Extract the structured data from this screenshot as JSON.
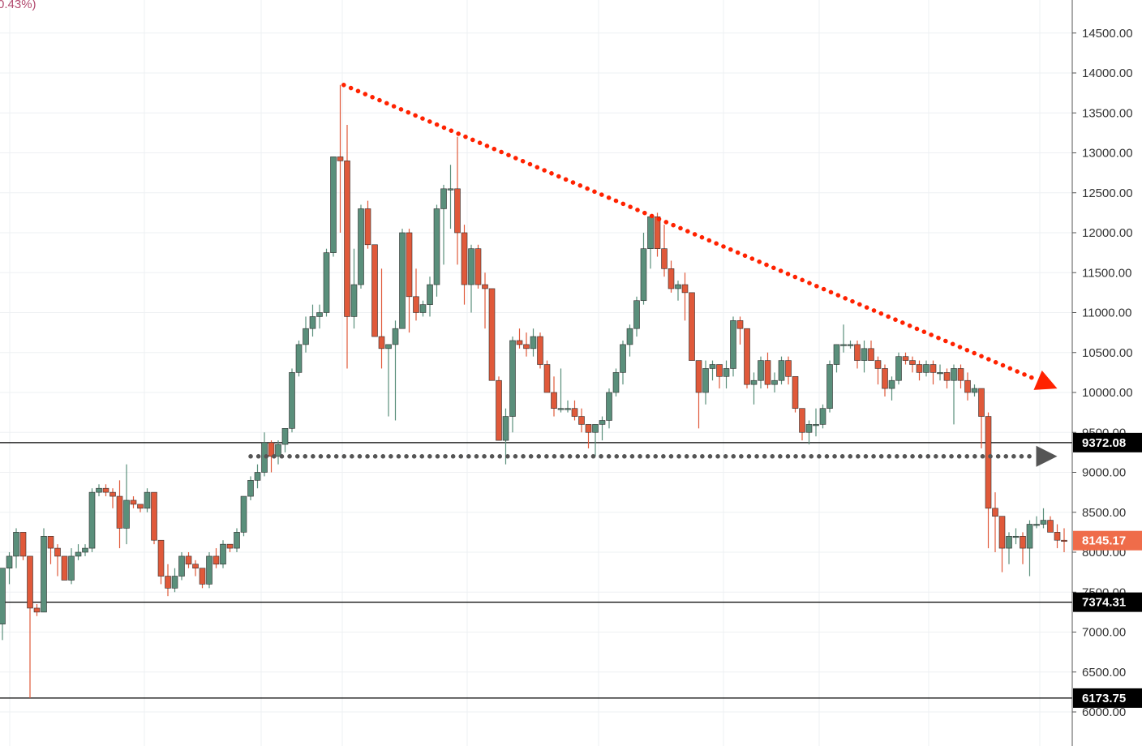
{
  "header": {
    "change_text": "0.43%)"
  },
  "chart_data": {
    "type": "candlestick",
    "title": "",
    "xlabel": "",
    "ylabel": "",
    "ylim": [
      5500,
      14900
    ],
    "y_ticks": [
      6000,
      6500,
      7000,
      7500,
      8000,
      8500,
      9000,
      9500,
      10000,
      10500,
      11000,
      11500,
      12000,
      12500,
      13000,
      13500,
      14000,
      14500
    ],
    "y_tick_labels": [
      "6000.00",
      "6500.00",
      "7000.00",
      "7500.00",
      "8000.00",
      "8500.00",
      "9000.00",
      "9500.00",
      "10000.00",
      "10500.00",
      "11000.00",
      "11500.00",
      "12000.00",
      "12500.00",
      "13000.00",
      "13500.00",
      "14000.00",
      "14500.00"
    ],
    "grid": true,
    "colors": {
      "up": "#5a8f7b",
      "down": "#e0593a",
      "trendline": "#ff2200",
      "support": "#555555",
      "current_price": "#ef6c4a",
      "level_label": "#000000"
    },
    "candles": [
      [
        7100,
        7800,
        6900,
        7800
      ],
      [
        7800,
        8000,
        7600,
        7950
      ],
      [
        7950,
        8300,
        7800,
        8250
      ],
      [
        8250,
        8250,
        7900,
        7950
      ],
      [
        7950,
        7950,
        6173,
        7300
      ],
      [
        7300,
        7350,
        7200,
        7250
      ],
      [
        7250,
        8300,
        7250,
        8200
      ],
      [
        8200,
        8200,
        7850,
        8050
      ],
      [
        8050,
        8100,
        7700,
        7950
      ],
      [
        7950,
        7950,
        7700,
        7650
      ],
      [
        7650,
        8050,
        7600,
        7950
      ],
      [
        7950,
        8100,
        7900,
        8000
      ],
      [
        8000,
        8100,
        7950,
        8050
      ],
      [
        8050,
        8800,
        8000,
        8750
      ],
      [
        8750,
        8850,
        8700,
        8800
      ],
      [
        8800,
        8850,
        8700,
        8750
      ],
      [
        8750,
        8800,
        8550,
        8700
      ],
      [
        8700,
        8900,
        8050,
        8300
      ],
      [
        8300,
        9100,
        8100,
        8650
      ],
      [
        8650,
        8700,
        8550,
        8600
      ],
      [
        8600,
        8600,
        8500,
        8550
      ],
      [
        8550,
        8800,
        8500,
        8750
      ],
      [
        8750,
        8750,
        8100,
        8150
      ],
      [
        8150,
        8150,
        7600,
        7700
      ],
      [
        7700,
        7850,
        7450,
        7550
      ],
      [
        7550,
        7800,
        7500,
        7700
      ],
      [
        7700,
        8000,
        7650,
        7950
      ],
      [
        7950,
        8000,
        7800,
        7850
      ],
      [
        7850,
        7900,
        7700,
        7800
      ],
      [
        7800,
        7800,
        7550,
        7600
      ],
      [
        7600,
        8000,
        7550,
        7950
      ],
      [
        7950,
        8050,
        7800,
        7850
      ],
      [
        7850,
        8150,
        7800,
        8100
      ],
      [
        8100,
        8100,
        8000,
        8050
      ],
      [
        8050,
        8300,
        8000,
        8250
      ],
      [
        8250,
        8700,
        8200,
        8700
      ],
      [
        8700,
        8950,
        8650,
        8900
      ],
      [
        8900,
        9100,
        8800,
        9000
      ],
      [
        9000,
        9500,
        8950,
        9372
      ],
      [
        9372,
        9400,
        9000,
        9200
      ],
      [
        9200,
        9400,
        9100,
        9350
      ],
      [
        9350,
        9550,
        9250,
        9550
      ],
      [
        9550,
        10300,
        9500,
        10250
      ],
      [
        10250,
        10650,
        10200,
        10600
      ],
      [
        10600,
        10950,
        10500,
        10800
      ],
      [
        10800,
        11100,
        10700,
        10950
      ],
      [
        10950,
        11100,
        10800,
        11000
      ],
      [
        11000,
        11800,
        10950,
        11750
      ],
      [
        11750,
        12950,
        11700,
        12950
      ],
      [
        12950,
        13850,
        12000,
        12900
      ],
      [
        12900,
        13350,
        10300,
        10950
      ],
      [
        10950,
        11800,
        10800,
        11350
      ],
      [
        11350,
        12350,
        11300,
        12300
      ],
      [
        12300,
        12400,
        11800,
        11850
      ],
      [
        11850,
        11850,
        10700,
        10700
      ],
      [
        10700,
        11550,
        10300,
        10550
      ],
      [
        10550,
        10600,
        9700,
        10600
      ],
      [
        10600,
        10900,
        9650,
        10800
      ],
      [
        10800,
        12050,
        10800,
        12000
      ],
      [
        12000,
        12050,
        10750,
        11200
      ],
      [
        11200,
        11550,
        10900,
        11000
      ],
      [
        11000,
        11150,
        10950,
        11100
      ],
      [
        11100,
        11450,
        10950,
        11350
      ],
      [
        11350,
        12350,
        11200,
        12300
      ],
      [
        12300,
        12600,
        11600,
        12550
      ],
      [
        12550,
        12850,
        12050,
        12550
      ],
      [
        12550,
        13200,
        11600,
        12000
      ],
      [
        12000,
        12100,
        11100,
        11350
      ],
      [
        11350,
        11850,
        11000,
        11800
      ],
      [
        11800,
        11850,
        11300,
        11350
      ],
      [
        11350,
        11500,
        10800,
        11300
      ],
      [
        11300,
        11300,
        10200,
        10150
      ],
      [
        10150,
        10200,
        9400,
        9400
      ],
      [
        9400,
        9800,
        9100,
        9700
      ],
      [
        9700,
        10700,
        9500,
        10650
      ],
      [
        10650,
        10800,
        10550,
        10600
      ],
      [
        10600,
        10750,
        10450,
        10550
      ],
      [
        10550,
        10800,
        10450,
        10700
      ],
      [
        10700,
        10750,
        10300,
        10350
      ],
      [
        10350,
        10400,
        10050,
        10000
      ],
      [
        10000,
        10200,
        9700,
        9800
      ],
      [
        9800,
        10300,
        9750,
        9800
      ],
      [
        9800,
        9900,
        9750,
        9800
      ],
      [
        9800,
        9900,
        9650,
        9700
      ],
      [
        9700,
        9800,
        9500,
        9600
      ],
      [
        9600,
        9600,
        9300,
        9500
      ],
      [
        9500,
        9550,
        9200,
        9600
      ],
      [
        9600,
        9700,
        9400,
        9650
      ],
      [
        9650,
        10050,
        9550,
        10000
      ],
      [
        10000,
        10300,
        9950,
        10250
      ],
      [
        10250,
        10650,
        10100,
        10600
      ],
      [
        10600,
        10850,
        10450,
        10800
      ],
      [
        10800,
        11200,
        10700,
        11150
      ],
      [
        11150,
        12000,
        11100,
        11800
      ],
      [
        11800,
        12150,
        11550,
        12200
      ],
      [
        12200,
        12250,
        11700,
        11800
      ],
      [
        11800,
        12100,
        11450,
        11550
      ],
      [
        11550,
        11650,
        11250,
        11300
      ],
      [
        11300,
        11400,
        11150,
        11350
      ],
      [
        11350,
        11500,
        10900,
        11250
      ],
      [
        11250,
        11250,
        10400,
        10400
      ],
      [
        10400,
        10400,
        9550,
        10000
      ],
      [
        10000,
        10400,
        9850,
        10300
      ],
      [
        10300,
        10400,
        10150,
        10350
      ],
      [
        10350,
        10350,
        10050,
        10200
      ],
      [
        10200,
        10400,
        10050,
        10300
      ],
      [
        10300,
        10950,
        10200,
        10900
      ],
      [
        10900,
        10950,
        10600,
        10800
      ],
      [
        10800,
        10800,
        10050,
        10100
      ],
      [
        10100,
        10250,
        9850,
        10150
      ],
      [
        10150,
        10450,
        10050,
        10400
      ],
      [
        10400,
        10500,
        10050,
        10100
      ],
      [
        10100,
        10250,
        10000,
        10150
      ],
      [
        10150,
        10450,
        10100,
        10400
      ],
      [
        10400,
        10450,
        10100,
        10200
      ],
      [
        10200,
        10200,
        9750,
        9800
      ],
      [
        9800,
        9800,
        9400,
        9500
      ],
      [
        9500,
        9650,
        9350,
        9600
      ],
      [
        9600,
        9800,
        9450,
        9600
      ],
      [
        9600,
        9850,
        9550,
        9800
      ],
      [
        9800,
        10400,
        9750,
        10350
      ],
      [
        10350,
        10600,
        10250,
        10600
      ],
      [
        10600,
        10850,
        10500,
        10600
      ],
      [
        10600,
        10650,
        10550,
        10600
      ],
      [
        10600,
        10650,
        10300,
        10400
      ],
      [
        10400,
        10650,
        10250,
        10550
      ],
      [
        10550,
        10650,
        10400,
        10400
      ],
      [
        10400,
        10450,
        10100,
        10300
      ],
      [
        10300,
        10350,
        9950,
        10050
      ],
      [
        10050,
        10200,
        9900,
        10150
      ],
      [
        10150,
        10500,
        10100,
        10450
      ],
      [
        10450,
        10500,
        10350,
        10400
      ],
      [
        10400,
        10450,
        10250,
        10350
      ],
      [
        10350,
        10400,
        10150,
        10250
      ],
      [
        10250,
        10400,
        10200,
        10350
      ],
      [
        10350,
        10400,
        10100,
        10250
      ],
      [
        10250,
        10350,
        10150,
        10250
      ],
      [
        10250,
        10300,
        10050,
        10150
      ],
      [
        10150,
        10350,
        9600,
        10300
      ],
      [
        10300,
        10350,
        10050,
        10150
      ],
      [
        10150,
        10250,
        9900,
        10000
      ],
      [
        10000,
        10100,
        9950,
        10050
      ],
      [
        10050,
        10050,
        9300,
        9700
      ],
      [
        9700,
        9750,
        8050,
        8550
      ],
      [
        8550,
        8750,
        8000,
        8450
      ],
      [
        8450,
        8450,
        7750,
        8050
      ],
      [
        8050,
        8250,
        7850,
        8200
      ],
      [
        8200,
        8300,
        8100,
        8200
      ],
      [
        8200,
        8250,
        7850,
        8050
      ],
      [
        8050,
        8400,
        7700,
        8350
      ],
      [
        8350,
        8450,
        8300,
        8350
      ],
      [
        8350,
        8550,
        8300,
        8400
      ],
      [
        8400,
        8450,
        8300,
        8250
      ],
      [
        8250,
        8350,
        8050,
        8150
      ],
      [
        8150,
        8300,
        8000,
        8145.17
      ]
    ],
    "horizontal_levels": [
      {
        "value": 9372.08,
        "label": "9372.08"
      },
      {
        "value": 7374.31,
        "label": "7374.31"
      },
      {
        "value": 6173.75,
        "label": "6173.75"
      }
    ],
    "current_price": {
      "value": 8145.17,
      "label": "8145.17"
    },
    "annotations": [
      {
        "type": "dotted-arrow",
        "color": "#ff2200",
        "from": [
          49.5,
          13850
        ],
        "to": [
          153,
          10050
        ]
      },
      {
        "type": "dotted-arrow",
        "color": "#555555",
        "from": [
          36,
          9200
        ],
        "to": [
          153,
          9200
        ]
      }
    ]
  }
}
